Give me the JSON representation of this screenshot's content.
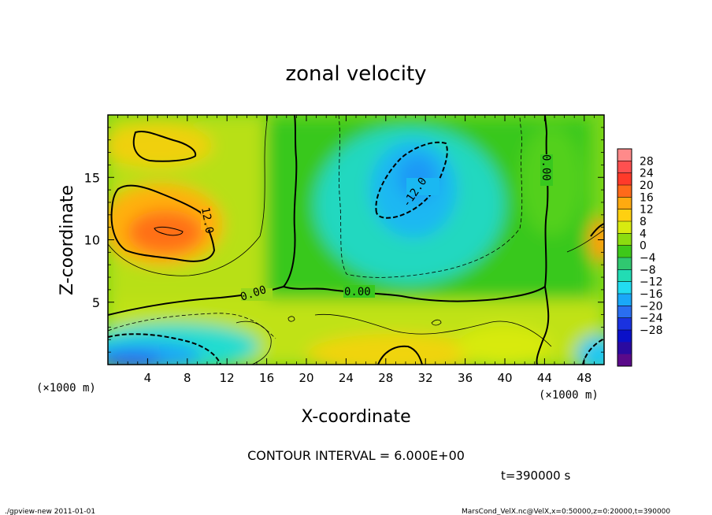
{
  "chart_data": {
    "type": "heatmap",
    "title": "zonal velocity",
    "xlabel": "X-coordinate",
    "ylabel": "Z-coordinate",
    "x_unit": "(×1000 m)",
    "z_unit": "(×1000 m)",
    "xlim": [
      0,
      50
    ],
    "ylim": [
      0,
      20
    ],
    "x_ticks": [
      "4",
      "8",
      "12",
      "16",
      "20",
      "24",
      "28",
      "32",
      "36",
      "40",
      "44",
      "48"
    ],
    "y_ticks": [
      "5",
      "10",
      "15"
    ],
    "colorbar": {
      "ticks": [
        "28",
        "24",
        "20",
        "16",
        "12",
        "8",
        "4",
        "0",
        "−4",
        "−8",
        "−12",
        "−16",
        "−20",
        "−24",
        "−28"
      ],
      "colors": [
        "#ff8a8a",
        "#ff5050",
        "#ff3a2a",
        "#ff6a1a",
        "#ffaa10",
        "#ffd010",
        "#d8ea10",
        "#8cdc10",
        "#3ec81a",
        "#30c870",
        "#22dcb4",
        "#22dcf0",
        "#1aa8f8",
        "#2a6ef0",
        "#1a32e0",
        "#0a10c8",
        "#2a0aa0",
        "#5a0a8a"
      ]
    },
    "contour_labels": [
      "12.0",
      "0.00",
      "0.00",
      "0.00",
      "-12.0"
    ],
    "contour_interval": "CONTOUR INTERVAL = 6.000E+00",
    "time_label": "t=390000 s",
    "features": [
      {
        "kind": "max",
        "x": 6,
        "z": 11,
        "value": 16
      },
      {
        "kind": "max",
        "x": 4,
        "z": 17.5,
        "value": 12
      },
      {
        "kind": "min",
        "x": 31,
        "z": 14,
        "value": -12
      },
      {
        "kind": "min",
        "x": 3,
        "z": 1.5,
        "value": -16
      }
    ]
  },
  "footer": {
    "left": "./gpview-new   2011-01-01",
    "right": "MarsCond_VelX.nc@VelX,x=0:50000,z=0:20000,t=390000"
  }
}
